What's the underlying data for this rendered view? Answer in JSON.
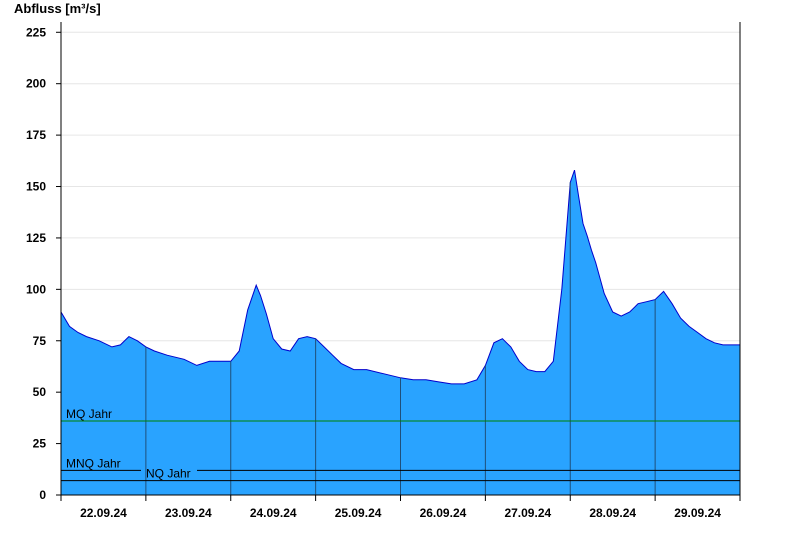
{
  "chart_data": {
    "type": "area",
    "ylabel": "Abfluss [m³/s]",
    "ylim": [
      0,
      230
    ],
    "yticks": [
      0,
      25,
      50,
      75,
      100,
      125,
      150,
      175,
      200,
      225
    ],
    "xlim": [
      0,
      8
    ],
    "day_labels": [
      "22.09.24",
      "23.09.24",
      "24.09.24",
      "25.09.24",
      "26.09.24",
      "27.09.24",
      "28.09.24",
      "29.09.24"
    ],
    "grid": true,
    "series": [
      {
        "color": "#29a3ff",
        "x": [
          0,
          0.1,
          0.2,
          0.3,
          0.45,
          0.6,
          0.7,
          0.8,
          0.9,
          1.0,
          1.1,
          1.25,
          1.45,
          1.6,
          1.75,
          1.9,
          2.0,
          2.1,
          2.2,
          2.3,
          2.35,
          2.42,
          2.5,
          2.6,
          2.7,
          2.8,
          2.9,
          3.0,
          3.1,
          3.2,
          3.3,
          3.45,
          3.6,
          3.8,
          4.0,
          4.15,
          4.3,
          4.45,
          4.6,
          4.75,
          4.9,
          5.0,
          5.1,
          5.2,
          5.3,
          5.4,
          5.5,
          5.6,
          5.7,
          5.8,
          5.9,
          6.0,
          6.05,
          6.1,
          6.15,
          6.2,
          6.25,
          6.3,
          6.4,
          6.5,
          6.6,
          6.7,
          6.8,
          6.9,
          7.0,
          7.1,
          7.2,
          7.3,
          7.4,
          7.5,
          7.6,
          7.7,
          7.8,
          8.0
        ],
        "values": [
          89,
          82,
          79,
          77,
          75,
          72,
          73,
          77,
          75,
          72,
          70,
          68,
          66,
          63,
          65,
          65,
          65,
          70,
          90,
          102,
          97,
          88,
          76,
          71,
          70,
          76,
          77,
          76,
          72,
          68,
          64,
          61,
          61,
          59,
          57,
          56,
          56,
          55,
          54,
          54,
          56,
          63,
          74,
          76,
          72,
          65,
          61,
          60,
          60,
          65,
          100,
          152,
          158,
          145,
          132,
          126,
          119,
          113,
          98,
          89,
          87,
          89,
          93,
          94,
          95,
          99,
          93,
          86,
          82,
          79,
          76,
          74,
          73,
          73
        ]
      }
    ],
    "reference_lines": [
      {
        "label": "MQ Jahr",
        "value": 36,
        "color": "#008000"
      },
      {
        "label": "MNQ Jahr",
        "value": 12,
        "color": "#000000"
      },
      {
        "label": "NQ Jahr",
        "value": 7,
        "color": "#000000"
      }
    ]
  }
}
